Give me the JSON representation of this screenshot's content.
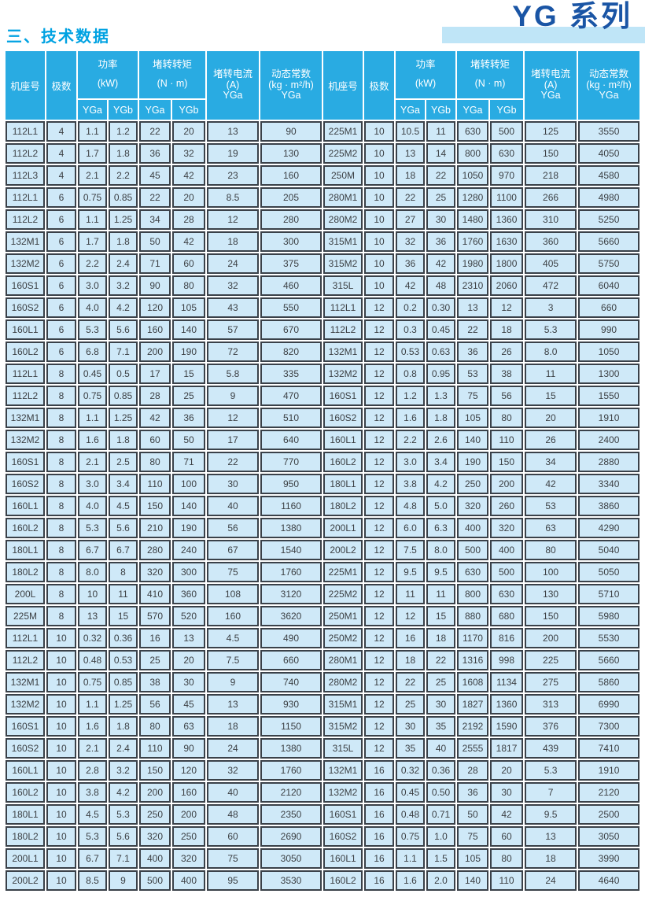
{
  "page": {
    "section_title": "三、技术数据",
    "series_badge": "YG 系列"
  },
  "colors": {
    "header_blue": "#29abe2",
    "cell_blue": "#cfe9f8",
    "border_dark": "#3a4149",
    "title_cyan": "#00a2e2",
    "badge_text_blue": "#1a55a5",
    "badge_bar_blue": "#bfe5f7"
  },
  "table": {
    "header": {
      "frame": "机座号",
      "poles": "极数",
      "power": "功率",
      "power_unit": "(kW)",
      "torque": "堵转转矩",
      "torque_unit": "(N · m)",
      "current": "堵转电流",
      "current_unit": "(A)",
      "dynamic": "动态常数",
      "dynamic_unit": "(kg · m²/h)",
      "yga": "YGa",
      "ygb": "YGb"
    },
    "column_keys": [
      "frame",
      "poles",
      "power_yga_kw",
      "power_ygb_kw",
      "torque_yga_nm",
      "torque_ygb_nm",
      "current_yga_a",
      "dynamic_yga"
    ],
    "left_rows": [
      [
        "112L1",
        "4",
        "1.1",
        "1.2",
        "22",
        "20",
        "13",
        "90"
      ],
      [
        "112L2",
        "4",
        "1.7",
        "1.8",
        "36",
        "32",
        "19",
        "130"
      ],
      [
        "112L3",
        "4",
        "2.1",
        "2.2",
        "45",
        "42",
        "23",
        "160"
      ],
      [
        "112L1",
        "6",
        "0.75",
        "0.85",
        "22",
        "20",
        "8.5",
        "205"
      ],
      [
        "112L2",
        "6",
        "1.1",
        "1.25",
        "34",
        "28",
        "12",
        "280"
      ],
      [
        "132M1",
        "6",
        "1.7",
        "1.8",
        "50",
        "42",
        "18",
        "300"
      ],
      [
        "132M2",
        "6",
        "2.2",
        "2.4",
        "71",
        "60",
        "24",
        "375"
      ],
      [
        "160S1",
        "6",
        "3.0",
        "3.2",
        "90",
        "80",
        "32",
        "460"
      ],
      [
        "160S2",
        "6",
        "4.0",
        "4.2",
        "120",
        "105",
        "43",
        "550"
      ],
      [
        "160L1",
        "6",
        "5.3",
        "5.6",
        "160",
        "140",
        "57",
        "670"
      ],
      [
        "160L2",
        "6",
        "6.8",
        "7.1",
        "200",
        "190",
        "72",
        "820"
      ],
      [
        "112L1",
        "8",
        "0.45",
        "0.5",
        "17",
        "15",
        "5.8",
        "335"
      ],
      [
        "112L2",
        "8",
        "0.75",
        "0.85",
        "28",
        "25",
        "9",
        "470"
      ],
      [
        "132M1",
        "8",
        "1.1",
        "1.25",
        "42",
        "36",
        "12",
        "510"
      ],
      [
        "132M2",
        "8",
        "1.6",
        "1.8",
        "60",
        "50",
        "17",
        "640"
      ],
      [
        "160S1",
        "8",
        "2.1",
        "2.5",
        "80",
        "71",
        "22",
        "770"
      ],
      [
        "160S2",
        "8",
        "3.0",
        "3.4",
        "110",
        "100",
        "30",
        "950"
      ],
      [
        "160L1",
        "8",
        "4.0",
        "4.5",
        "150",
        "140",
        "40",
        "1160"
      ],
      [
        "160L2",
        "8",
        "5.3",
        "5.6",
        "210",
        "190",
        "56",
        "1380"
      ],
      [
        "180L1",
        "8",
        "6.7",
        "6.7",
        "280",
        "240",
        "67",
        "1540"
      ],
      [
        "180L2",
        "8",
        "8.0",
        "8",
        "320",
        "300",
        "75",
        "1760"
      ],
      [
        "200L",
        "8",
        "10",
        "11",
        "410",
        "360",
        "108",
        "3120"
      ],
      [
        "225M",
        "8",
        "13",
        "15",
        "570",
        "520",
        "160",
        "3620"
      ],
      [
        "112L1",
        "10",
        "0.32",
        "0.36",
        "16",
        "13",
        "4.5",
        "490"
      ],
      [
        "112L2",
        "10",
        "0.48",
        "0.53",
        "25",
        "20",
        "7.5",
        "660"
      ],
      [
        "132M1",
        "10",
        "0.75",
        "0.85",
        "38",
        "30",
        "9",
        "740"
      ],
      [
        "132M2",
        "10",
        "1.1",
        "1.25",
        "56",
        "45",
        "13",
        "930"
      ],
      [
        "160S1",
        "10",
        "1.6",
        "1.8",
        "80",
        "63",
        "18",
        "1150"
      ],
      [
        "160S2",
        "10",
        "2.1",
        "2.4",
        "110",
        "90",
        "24",
        "1380"
      ],
      [
        "160L1",
        "10",
        "2.8",
        "3.2",
        "150",
        "120",
        "32",
        "1760"
      ],
      [
        "160L2",
        "10",
        "3.8",
        "4.2",
        "200",
        "160",
        "40",
        "2120"
      ],
      [
        "180L1",
        "10",
        "4.5",
        "5.3",
        "250",
        "200",
        "48",
        "2350"
      ],
      [
        "180L2",
        "10",
        "5.3",
        "5.6",
        "320",
        "250",
        "60",
        "2690"
      ],
      [
        "200L1",
        "10",
        "6.7",
        "7.1",
        "400",
        "320",
        "75",
        "3050"
      ],
      [
        "200L2",
        "10",
        "8.5",
        "9",
        "500",
        "400",
        "95",
        "3530"
      ]
    ],
    "right_rows": [
      [
        "225M1",
        "10",
        "10.5",
        "11",
        "630",
        "500",
        "125",
        "3550"
      ],
      [
        "225M2",
        "10",
        "13",
        "14",
        "800",
        "630",
        "150",
        "4050"
      ],
      [
        "250M",
        "10",
        "18",
        "22",
        "1050",
        "970",
        "218",
        "4580"
      ],
      [
        "280M1",
        "10",
        "22",
        "25",
        "1280",
        "1100",
        "266",
        "4980"
      ],
      [
        "280M2",
        "10",
        "27",
        "30",
        "1480",
        "1360",
        "310",
        "5250"
      ],
      [
        "315M1",
        "10",
        "32",
        "36",
        "1760",
        "1630",
        "360",
        "5660"
      ],
      [
        "315M2",
        "10",
        "36",
        "42",
        "1980",
        "1800",
        "405",
        "5750"
      ],
      [
        "315L",
        "10",
        "42",
        "48",
        "2310",
        "2060",
        "472",
        "6040"
      ],
      [
        "112L1",
        "12",
        "0.2",
        "0.30",
        "13",
        "12",
        "3",
        "660"
      ],
      [
        "112L2",
        "12",
        "0.3",
        "0.45",
        "22",
        "18",
        "5.3",
        "990"
      ],
      [
        "132M1",
        "12",
        "0.53",
        "0.63",
        "36",
        "26",
        "8.0",
        "1050"
      ],
      [
        "132M2",
        "12",
        "0.8",
        "0.95",
        "53",
        "38",
        "11",
        "1300"
      ],
      [
        "160S1",
        "12",
        "1.2",
        "1.3",
        "75",
        "56",
        "15",
        "1550"
      ],
      [
        "160S2",
        "12",
        "1.6",
        "1.8",
        "105",
        "80",
        "20",
        "1910"
      ],
      [
        "160L1",
        "12",
        "2.2",
        "2.6",
        "140",
        "110",
        "26",
        "2400"
      ],
      [
        "160L2",
        "12",
        "3.0",
        "3.4",
        "190",
        "150",
        "34",
        "2880"
      ],
      [
        "180L1",
        "12",
        "3.8",
        "4.2",
        "250",
        "200",
        "42",
        "3340"
      ],
      [
        "180L2",
        "12",
        "4.8",
        "5.0",
        "320",
        "260",
        "53",
        "3860"
      ],
      [
        "200L1",
        "12",
        "6.0",
        "6.3",
        "400",
        "320",
        "63",
        "4290"
      ],
      [
        "200L2",
        "12",
        "7.5",
        "8.0",
        "500",
        "400",
        "80",
        "5040"
      ],
      [
        "225M1",
        "12",
        "9.5",
        "9.5",
        "630",
        "500",
        "100",
        "5050"
      ],
      [
        "225M2",
        "12",
        "11",
        "11",
        "800",
        "630",
        "130",
        "5710"
      ],
      [
        "250M1",
        "12",
        "12",
        "15",
        "880",
        "680",
        "150",
        "5980"
      ],
      [
        "250M2",
        "12",
        "16",
        "18",
        "1170",
        "816",
        "200",
        "5530"
      ],
      [
        "280M1",
        "12",
        "18",
        "22",
        "1316",
        "998",
        "225",
        "5660"
      ],
      [
        "280M2",
        "12",
        "22",
        "25",
        "1608",
        "1134",
        "275",
        "5860"
      ],
      [
        "315M1",
        "12",
        "25",
        "30",
        "1827",
        "1360",
        "313",
        "6990"
      ],
      [
        "315M2",
        "12",
        "30",
        "35",
        "2192",
        "1590",
        "376",
        "7300"
      ],
      [
        "315L",
        "12",
        "35",
        "40",
        "2555",
        "1817",
        "439",
        "7410"
      ],
      [
        "132M1",
        "16",
        "0.32",
        "0.36",
        "28",
        "20",
        "5.3",
        "1910"
      ],
      [
        "132M2",
        "16",
        "0.45",
        "0.50",
        "36",
        "30",
        "7",
        "2120"
      ],
      [
        "160S1",
        "16",
        "0.48",
        "0.71",
        "50",
        "42",
        "9.5",
        "2500"
      ],
      [
        "160S2",
        "16",
        "0.75",
        "1.0",
        "75",
        "60",
        "13",
        "3050"
      ],
      [
        "160L1",
        "16",
        "1.1",
        "1.5",
        "105",
        "80",
        "18",
        "3990"
      ],
      [
        "160L2",
        "16",
        "1.6",
        "2.0",
        "140",
        "110",
        "24",
        "4640"
      ]
    ]
  }
}
